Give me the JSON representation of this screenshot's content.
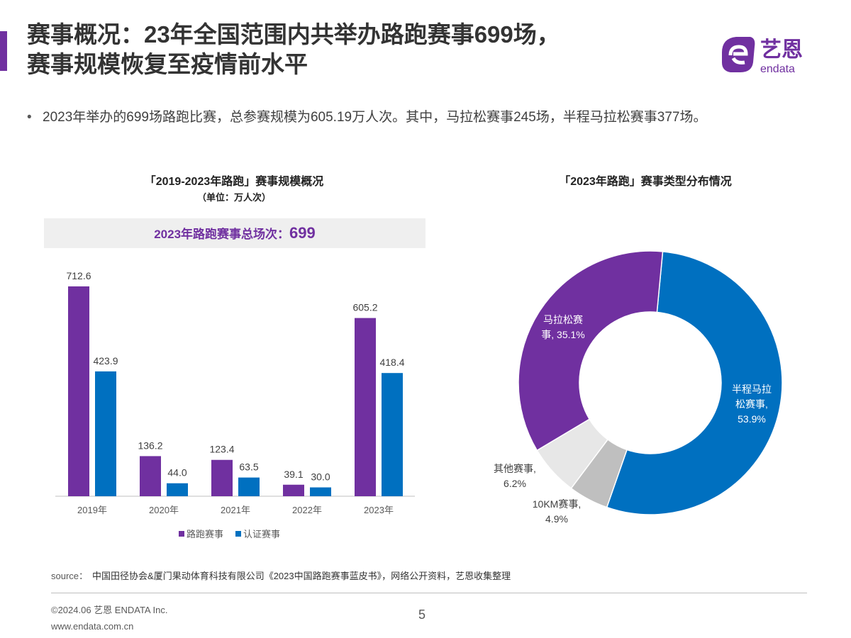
{
  "header": {
    "title_line1": "赛事概况：23年全国范围内共举办路跑赛事699场，",
    "title_line2": "赛事规模恢复至疫情前水平",
    "logo_text": "艺恩",
    "logo_sub": "endata"
  },
  "bullet": "2023年举办的699场路跑比赛，总参赛规模为605.19万人次。其中，马拉松赛事245场，半程马拉松赛事377场。",
  "colors": {
    "purple": "#7030a0",
    "blue": "#0070c0",
    "gray": "#bfbfbf",
    "light_gray": "#e7e7e7"
  },
  "chart_data": [
    {
      "type": "bar",
      "title": "「2019-2023年路跑」赛事规模概况",
      "subtitle": "（单位：万人次）",
      "banner_label": "2023年路跑赛事总场次：",
      "banner_value": "699",
      "categories": [
        "2019年",
        "2020年",
        "2021年",
        "2022年",
        "2023年"
      ],
      "series": [
        {
          "name": "路跑赛事",
          "color": "#7030a0",
          "values": [
            712.6,
            136.2,
            123.4,
            39.1,
            605.2
          ]
        },
        {
          "name": "认证赛事",
          "color": "#0070c0",
          "values": [
            423.9,
            44.0,
            63.5,
            30.0,
            418.4
          ]
        }
      ],
      "legend": "bottom",
      "grid": false
    },
    {
      "type": "pie",
      "donut": true,
      "title": "「2023年路跑」赛事类型分布情况",
      "slices": [
        {
          "label": "半程马拉松赛事",
          "line1": "半程马拉",
          "line2": "松赛事,",
          "pct": "53.9%",
          "value": 53.9,
          "color": "#0070c0"
        },
        {
          "label": "10KM赛事",
          "line1": "10KM赛事,",
          "line2": "",
          "pct": "4.9%",
          "value": 4.9,
          "color": "#bfbfbf"
        },
        {
          "label": "其他赛事",
          "line1": "其他赛事,",
          "line2": "",
          "pct": "6.2%",
          "value": 6.2,
          "color": "#e7e7e7"
        },
        {
          "label": "马拉松赛事",
          "line1": "马拉松赛",
          "line2": "事, 35.1%",
          "pct": "",
          "value": 35.1,
          "color": "#7030a0"
        }
      ]
    }
  ],
  "footer": {
    "source_label": "source：",
    "source": "中国田径协会&厦门果动体育科技有限公司《2023中国路跑赛事蓝皮书》，网络公开资料，艺恩收集整理",
    "copyright": "©2024.06  艺恩 ENDATA Inc.",
    "website": "www.endata.com.cn",
    "page": "5"
  }
}
